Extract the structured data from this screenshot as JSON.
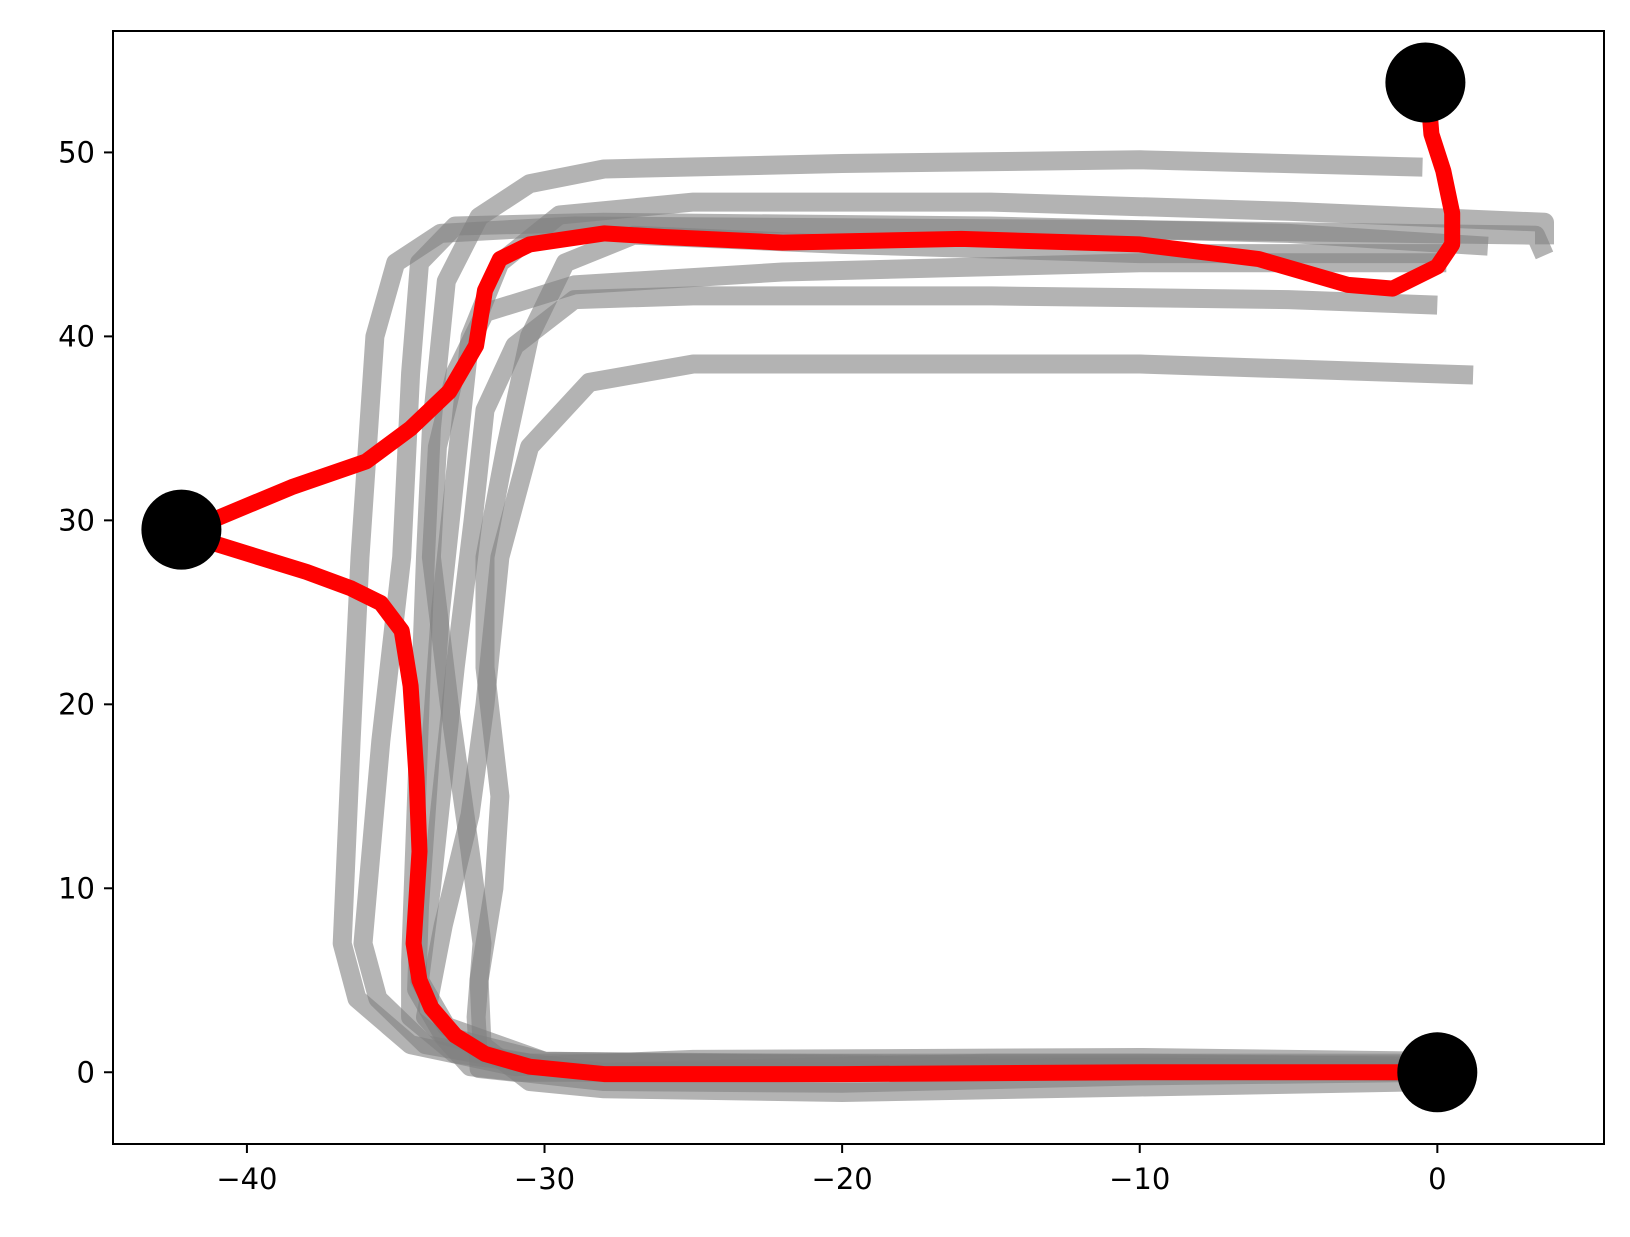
{
  "chart_data": {
    "type": "line",
    "title": "",
    "xlabel": "",
    "ylabel": "",
    "xlim": [
      -44.5,
      5.6
    ],
    "ylim": [
      -3.9,
      56.6
    ],
    "grid": false,
    "legend": "none",
    "x_ticks": [
      {
        "value": -40,
        "label": "−40"
      },
      {
        "value": -30,
        "label": "−30"
      },
      {
        "value": -20,
        "label": "−20"
      },
      {
        "value": -10,
        "label": "−10"
      },
      {
        "value": 0,
        "label": "0"
      }
    ],
    "y_ticks": [
      {
        "value": 0,
        "label": "0"
      },
      {
        "value": 10,
        "label": "10"
      },
      {
        "value": 20,
        "label": "20"
      },
      {
        "value": 30,
        "label": "30"
      },
      {
        "value": 40,
        "label": "40"
      },
      {
        "value": 50,
        "label": "50"
      }
    ],
    "series": [
      {
        "role": "demo",
        "color": "#808080",
        "points": [
          [
            0,
            0.6
          ],
          [
            -10,
            0.8
          ],
          [
            -25,
            0.7
          ],
          [
            -31,
            0.3
          ],
          [
            -34.5,
            1.5
          ],
          [
            -36.3,
            4
          ],
          [
            -36.8,
            7
          ],
          [
            -36.5,
            18
          ],
          [
            -36.2,
            28
          ],
          [
            -35.7,
            40
          ],
          [
            -35,
            44
          ],
          [
            -33.5,
            45.6
          ],
          [
            -29,
            46
          ],
          [
            -20,
            45.9
          ],
          [
            -10,
            45.8
          ],
          [
            3.3,
            45.5
          ],
          [
            3.6,
            44.4
          ]
        ]
      },
      {
        "role": "demo",
        "color": "#808080",
        "points": [
          [
            0,
            0.3
          ],
          [
            -10,
            0.5
          ],
          [
            -25,
            0.5
          ],
          [
            -30.5,
            0.5
          ],
          [
            -34,
            1.5
          ],
          [
            -35.6,
            4
          ],
          [
            -36.1,
            7
          ],
          [
            -35.5,
            18
          ],
          [
            -34.8,
            28
          ],
          [
            -34.5,
            38
          ],
          [
            -34.2,
            44
          ],
          [
            -33,
            46
          ],
          [
            -28,
            46.2
          ],
          [
            -15,
            46
          ],
          [
            -5,
            45.6
          ],
          [
            1.7,
            44.9
          ]
        ]
      },
      {
        "role": "demo",
        "color": "#808080",
        "points": [
          [
            0,
            0.4
          ],
          [
            -15,
            0.4
          ],
          [
            -30,
            0.6
          ],
          [
            -33.4,
            2
          ],
          [
            -34.3,
            4.5
          ],
          [
            -34.2,
            9
          ],
          [
            -33.5,
            25
          ],
          [
            -32.5,
            40
          ],
          [
            -31.5,
            44
          ],
          [
            -29.5,
            46.6
          ],
          [
            -25,
            47.3
          ],
          [
            -15,
            47.3
          ],
          [
            -5,
            46.8
          ],
          [
            3.6,
            46.2
          ],
          [
            3.6,
            45
          ]
        ]
      },
      {
        "role": "demo",
        "color": "#808080",
        "points": [
          [
            0,
            0.2
          ],
          [
            -15,
            0.3
          ],
          [
            -30,
            0.6
          ],
          [
            -33.3,
            2.5
          ],
          [
            -34.2,
            5
          ],
          [
            -33.8,
            10
          ],
          [
            -33,
            22
          ],
          [
            -32.4,
            30
          ],
          [
            -32,
            36
          ],
          [
            -31,
            39.5
          ],
          [
            -29,
            42
          ],
          [
            -25,
            42.2
          ],
          [
            -15,
            42.2
          ],
          [
            -5,
            42
          ],
          [
            0,
            41.7
          ]
        ]
      },
      {
        "role": "demo",
        "color": "#808080",
        "points": [
          [
            0,
            0
          ],
          [
            -10,
            -0.2
          ],
          [
            -20,
            -0.6
          ],
          [
            -28,
            -0.5
          ],
          [
            -32.5,
            0.3
          ],
          [
            -34,
            3
          ],
          [
            -33.4,
            8
          ],
          [
            -32.5,
            14
          ],
          [
            -32,
            20
          ],
          [
            -31.5,
            28
          ],
          [
            -30.5,
            34
          ],
          [
            -28.5,
            37.5
          ],
          [
            -25,
            38.5
          ],
          [
            -10,
            38.5
          ],
          [
            1.2,
            37.9
          ]
        ]
      },
      {
        "role": "demo",
        "color": "#808080",
        "points": [
          [
            0,
            0
          ],
          [
            -10,
            0.3
          ],
          [
            -22,
            0
          ],
          [
            -31,
            0
          ],
          [
            -32.2,
            0.2
          ],
          [
            -32.3,
            3
          ],
          [
            -32.1,
            7
          ],
          [
            -32.5,
            12
          ],
          [
            -33.2,
            20
          ],
          [
            -33.8,
            28
          ],
          [
            -33.6,
            34
          ],
          [
            -33,
            38
          ],
          [
            -32,
            41.3
          ],
          [
            -29,
            42.8
          ],
          [
            -22,
            43.5
          ],
          [
            -10,
            44
          ],
          [
            0.3,
            44
          ]
        ]
      },
      {
        "role": "demo",
        "color": "#808080",
        "points": [
          [
            0,
            -0.5
          ],
          [
            -10,
            -0.8
          ],
          [
            -20,
            -1.1
          ],
          [
            -28,
            -0.9
          ],
          [
            -30.5,
            -0.5
          ],
          [
            -32.1,
            1.5
          ],
          [
            -32.2,
            5
          ],
          [
            -31.7,
            10
          ],
          [
            -31.5,
            15
          ],
          [
            -32,
            22
          ],
          [
            -32,
            28
          ],
          [
            -31.3,
            34
          ],
          [
            -30.5,
            40
          ],
          [
            -29.3,
            44
          ],
          [
            -27,
            45.5
          ],
          [
            -20,
            45
          ],
          [
            -10,
            44.5
          ],
          [
            0.3,
            44.5
          ]
        ]
      },
      {
        "role": "demo",
        "color": "#808080",
        "points": [
          [
            -0.5,
            49.2
          ],
          [
            -10,
            49.6
          ],
          [
            -20,
            49.4
          ],
          [
            -28,
            49.1
          ],
          [
            -30.5,
            48.3
          ],
          [
            -32.2,
            46.5
          ],
          [
            -33.3,
            43
          ],
          [
            -33.8,
            35
          ],
          [
            -34,
            28
          ],
          [
            -34.3,
            15
          ],
          [
            -34.5,
            6
          ],
          [
            -34.5,
            3
          ],
          [
            -33,
            1
          ],
          [
            -28,
            0
          ],
          [
            -15,
            0.5
          ],
          [
            0,
            0.5
          ]
        ]
      },
      {
        "role": "reference",
        "color": "#ff0000",
        "points": [
          [
            0,
            0
          ],
          [
            -10,
            0
          ],
          [
            -20,
            -0.1
          ],
          [
            -28,
            -0.1
          ],
          [
            -30.5,
            0.3
          ],
          [
            -32,
            1
          ],
          [
            -33,
            2
          ],
          [
            -33.8,
            3.5
          ],
          [
            -34.2,
            5
          ],
          [
            -34.4,
            7
          ],
          [
            -34.2,
            12
          ],
          [
            -34.3,
            16
          ],
          [
            -34.5,
            21
          ],
          [
            -34.8,
            24
          ],
          [
            -35.5,
            25.5
          ],
          [
            -36.5,
            26.3
          ],
          [
            -38,
            27.2
          ],
          [
            -40,
            28.2
          ],
          [
            -42.2,
            29.3
          ],
          [
            -38.5,
            31.8
          ],
          [
            -36,
            33.2
          ],
          [
            -34.5,
            35
          ],
          [
            -33.2,
            37
          ],
          [
            -32.3,
            39.5
          ],
          [
            -32,
            42.5
          ],
          [
            -31.5,
            44.2
          ],
          [
            -30.5,
            45
          ],
          [
            -28,
            45.6
          ],
          [
            -26,
            45.4
          ],
          [
            -22,
            45.1
          ],
          [
            -16,
            45.3
          ],
          [
            -10,
            45
          ],
          [
            -6,
            44.2
          ],
          [
            -3,
            42.8
          ],
          [
            -1.5,
            42.6
          ],
          [
            0,
            43.8
          ],
          [
            0.5,
            45
          ],
          [
            0.5,
            46.7
          ],
          [
            0.2,
            49
          ],
          [
            -0.2,
            51
          ],
          [
            -0.3,
            53
          ]
        ]
      }
    ],
    "markers": [
      {
        "x": 0,
        "y": 0,
        "color": "#000000"
      },
      {
        "x": -42.2,
        "y": 29.5,
        "color": "#000000"
      },
      {
        "x": -0.4,
        "y": 53.8,
        "color": "#000000"
      }
    ]
  }
}
